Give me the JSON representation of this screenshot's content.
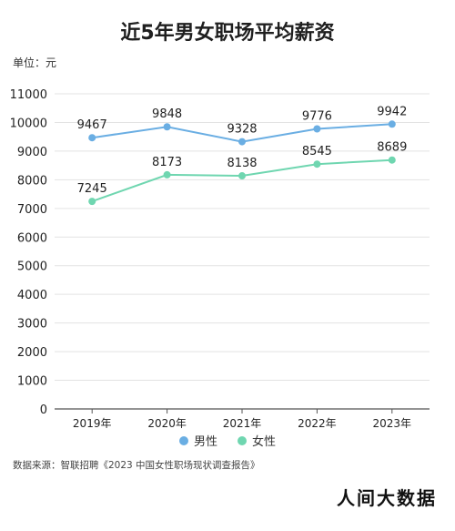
{
  "title": "近5年男女职场平均薪资",
  "unit": "单位：元",
  "source": "数据来源：智联招聘《2023 中国女性职场现状调查报告》",
  "brand": "人间大数据",
  "brand_sub": "@人间大数据",
  "chart_data": {
    "type": "line",
    "categories": [
      "2019年",
      "2020年",
      "2021年",
      "2022年",
      "2023年"
    ],
    "series": [
      {
        "name": "男性",
        "color": "#6aaee3",
        "values": [
          9467,
          9848,
          9328,
          9776,
          9942
        ]
      },
      {
        "name": "女性",
        "color": "#6fd6b0",
        "values": [
          7245,
          8173,
          8138,
          8545,
          8689
        ]
      }
    ],
    "ylim": [
      0,
      11000
    ],
    "yticks": [
      0,
      1000,
      2000,
      3000,
      4000,
      5000,
      6000,
      7000,
      8000,
      9000,
      10000,
      11000
    ],
    "grid": true,
    "legend": "bottom-center"
  }
}
